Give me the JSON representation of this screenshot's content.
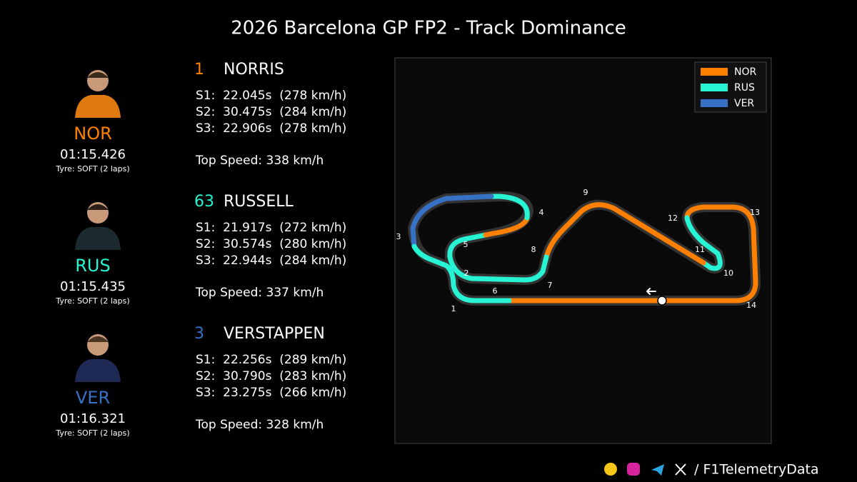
{
  "header": {
    "title": "2026 Barcelona GP FP2 - Track Dominance"
  },
  "drivers": [
    {
      "code": "NOR",
      "color": "#ff8000",
      "lap_time": "01:15.426",
      "tyre": "Tyre: SOFT (2 laps)",
      "number": "1",
      "name": "NORRIS",
      "sectors": [
        "S1:  22.045s  (278 km/h)",
        "S2:  30.475s  (284 km/h)",
        "S3:  22.906s  (278 km/h)"
      ],
      "top_speed": "Top Speed: 338 km/h"
    },
    {
      "code": "RUS",
      "color": "#27f4d2",
      "lap_time": "01:15.435",
      "tyre": "Tyre: SOFT (2 laps)",
      "number": "63",
      "name": "RUSSELL",
      "sectors": [
        "S1:  21.917s  (272 km/h)",
        "S2:  30.574s  (280 km/h)",
        "S3:  22.944s  (284 km/h)"
      ],
      "top_speed": "Top Speed: 337 km/h"
    },
    {
      "code": "VER",
      "color": "#3671c6",
      "lap_time": "01:16.321",
      "tyre": "Tyre: SOFT (2 laps)",
      "number": "3",
      "name": "VERSTAPPEN",
      "sectors": [
        "S1:  22.256s  (289 km/h)",
        "S2:  30.790s  (283 km/h)",
        "S3:  23.275s  (266 km/h)"
      ],
      "top_speed": "Top Speed: 328 km/h"
    }
  ],
  "corners": [
    "1",
    "2",
    "3",
    "4",
    "5",
    "6",
    "7",
    "8",
    "9",
    "10",
    "11",
    "12",
    "13",
    "14"
  ],
  "footer": {
    "handle": "/ F1TelemetryData"
  }
}
